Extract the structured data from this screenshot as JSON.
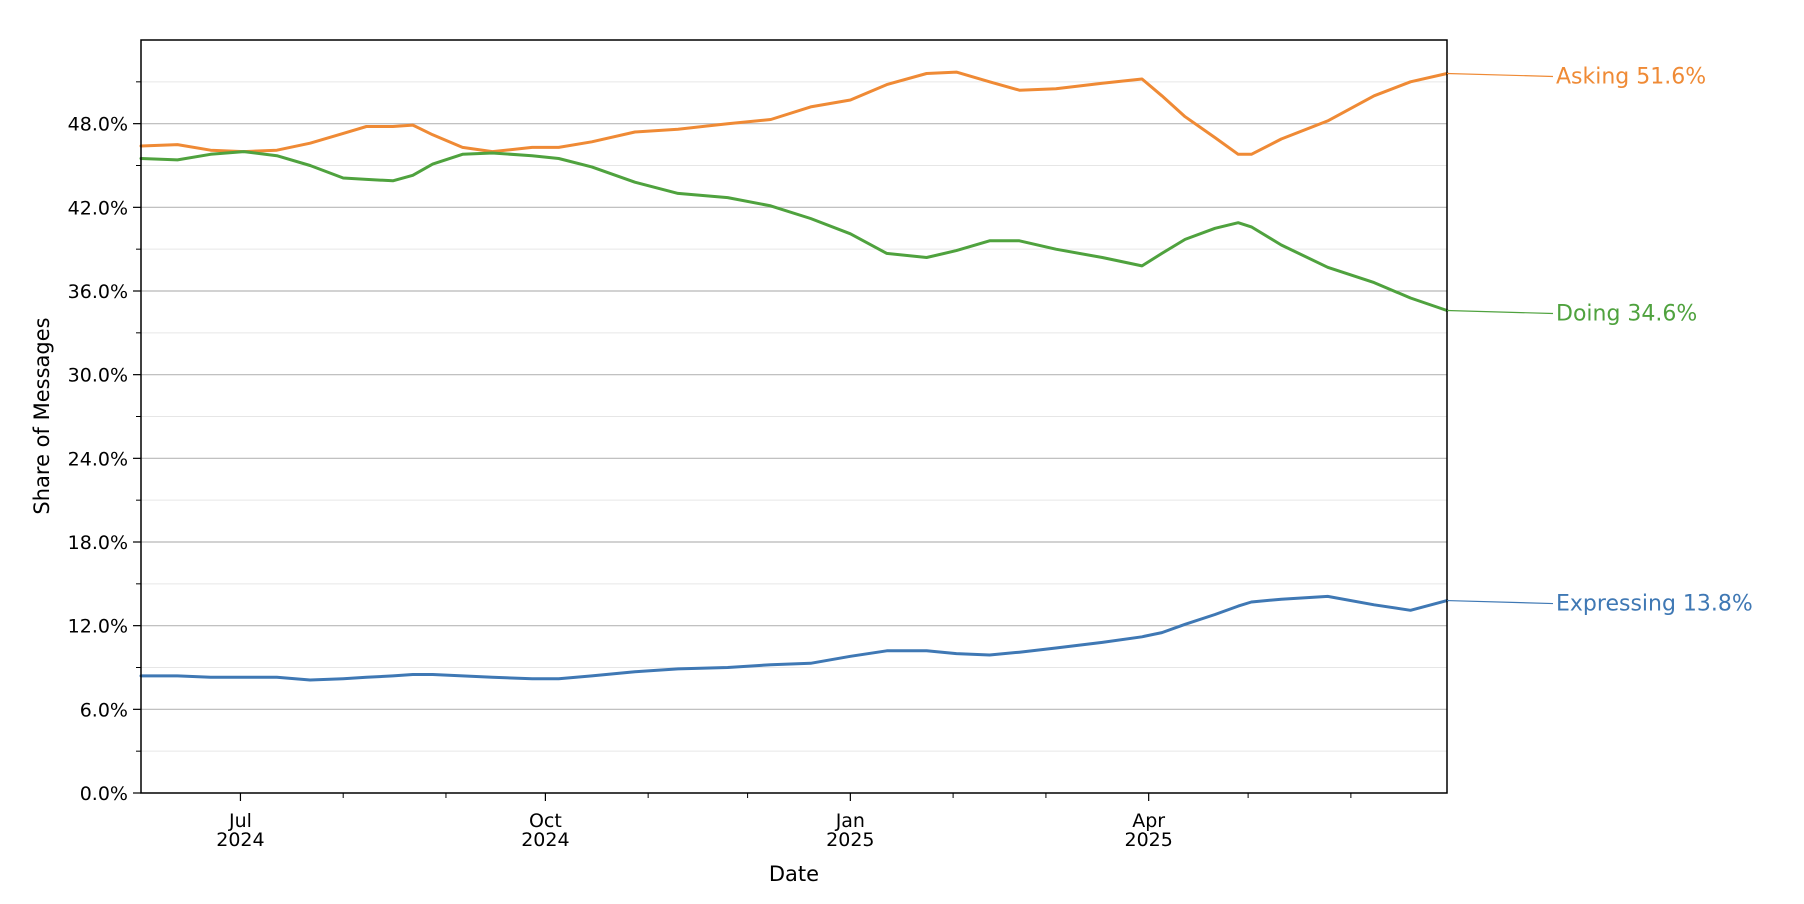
{
  "chart_data": {
    "type": "line",
    "xlabel": "Date",
    "ylabel": "Share of Messages",
    "xlim": [
      "2024-06-01",
      "2025-06-30"
    ],
    "ylim": [
      0,
      0.54
    ],
    "y_tick_values": [
      0,
      0.06,
      0.12,
      0.18,
      0.24,
      0.3,
      0.36,
      0.42,
      0.48
    ],
    "y_tick_labels": [
      "0.0%",
      "6.0%",
      "12.0%",
      "18.0%",
      "24.0%",
      "30.0%",
      "36.0%",
      "42.0%",
      "48.0%"
    ],
    "y_minor_step": 0.03,
    "x_major_ticks": [
      {
        "date": "2024-07-01",
        "month": "Jul",
        "year": "2024"
      },
      {
        "date": "2024-10-01",
        "month": "Oct",
        "year": "2024"
      },
      {
        "date": "2025-01-01",
        "month": "Jan",
        "year": "2025"
      },
      {
        "date": "2025-04-01",
        "month": "Apr",
        "year": "2025"
      }
    ],
    "x_minor_ticks": [
      "2024-08-01",
      "2024-09-01",
      "2024-11-01",
      "2024-12-01",
      "2025-02-01",
      "2025-03-01",
      "2025-05-01",
      "2025-06-01"
    ],
    "grid": "horizontal",
    "legend": "end-of-line labels on the right",
    "series": [
      {
        "name": "Asking",
        "color": "#ef8a35",
        "end_label": "Asking  51.6%",
        "points": [
          [
            "2024-06-01",
            0.464
          ],
          [
            "2024-06-12",
            0.465
          ],
          [
            "2024-06-22",
            0.461
          ],
          [
            "2024-07-02",
            0.46
          ],
          [
            "2024-07-12",
            0.461
          ],
          [
            "2024-07-22",
            0.466
          ],
          [
            "2024-08-01",
            0.473
          ],
          [
            "2024-08-08",
            0.478
          ],
          [
            "2024-08-16",
            0.478
          ],
          [
            "2024-08-22",
            0.479
          ],
          [
            "2024-08-28",
            0.472
          ],
          [
            "2024-09-06",
            0.463
          ],
          [
            "2024-09-15",
            0.46
          ],
          [
            "2024-09-27",
            0.463
          ],
          [
            "2024-10-05",
            0.463
          ],
          [
            "2024-10-15",
            0.467
          ],
          [
            "2024-10-28",
            0.474
          ],
          [
            "2024-11-10",
            0.476
          ],
          [
            "2024-11-25",
            0.48
          ],
          [
            "2024-12-08",
            0.483
          ],
          [
            "2024-12-20",
            0.492
          ],
          [
            "2025-01-01",
            0.497
          ],
          [
            "2025-01-12",
            0.508
          ],
          [
            "2025-01-24",
            0.516
          ],
          [
            "2025-02-02",
            0.517
          ],
          [
            "2025-02-12",
            0.51
          ],
          [
            "2025-02-21",
            0.504
          ],
          [
            "2025-03-04",
            0.505
          ],
          [
            "2025-03-18",
            0.509
          ],
          [
            "2025-03-30",
            0.512
          ],
          [
            "2025-04-05",
            0.5
          ],
          [
            "2025-04-12",
            0.485
          ],
          [
            "2025-04-21",
            0.47
          ],
          [
            "2025-04-28",
            0.458
          ],
          [
            "2025-05-02",
            0.458
          ],
          [
            "2025-05-11",
            0.469
          ],
          [
            "2025-05-25",
            0.482
          ],
          [
            "2025-06-08",
            0.5
          ],
          [
            "2025-06-19",
            0.51
          ],
          [
            "2025-06-30",
            0.516
          ]
        ]
      },
      {
        "name": "Doing",
        "color": "#4fa23e",
        "end_label": "Doing  34.6%",
        "points": [
          [
            "2024-06-01",
            0.455
          ],
          [
            "2024-06-12",
            0.454
          ],
          [
            "2024-06-22",
            0.458
          ],
          [
            "2024-07-02",
            0.46
          ],
          [
            "2024-07-12",
            0.457
          ],
          [
            "2024-07-22",
            0.45
          ],
          [
            "2024-08-01",
            0.441
          ],
          [
            "2024-08-08",
            0.44
          ],
          [
            "2024-08-16",
            0.439
          ],
          [
            "2024-08-22",
            0.443
          ],
          [
            "2024-08-28",
            0.451
          ],
          [
            "2024-09-06",
            0.458
          ],
          [
            "2024-09-15",
            0.459
          ],
          [
            "2024-09-27",
            0.457
          ],
          [
            "2024-10-05",
            0.455
          ],
          [
            "2024-10-15",
            0.449
          ],
          [
            "2024-10-28",
            0.438
          ],
          [
            "2024-11-10",
            0.43
          ],
          [
            "2024-11-25",
            0.427
          ],
          [
            "2024-12-08",
            0.421
          ],
          [
            "2024-12-20",
            0.412
          ],
          [
            "2025-01-01",
            0.401
          ],
          [
            "2025-01-12",
            0.387
          ],
          [
            "2025-01-24",
            0.384
          ],
          [
            "2025-02-02",
            0.389
          ],
          [
            "2025-02-12",
            0.396
          ],
          [
            "2025-02-21",
            0.396
          ],
          [
            "2025-03-04",
            0.39
          ],
          [
            "2025-03-18",
            0.384
          ],
          [
            "2025-03-30",
            0.378
          ],
          [
            "2025-04-05",
            0.387
          ],
          [
            "2025-04-12",
            0.397
          ],
          [
            "2025-04-21",
            0.405
          ],
          [
            "2025-04-28",
            0.409
          ],
          [
            "2025-05-02",
            0.406
          ],
          [
            "2025-05-11",
            0.393
          ],
          [
            "2025-05-25",
            0.377
          ],
          [
            "2025-06-08",
            0.366
          ],
          [
            "2025-06-19",
            0.355
          ],
          [
            "2025-06-30",
            0.346
          ]
        ]
      },
      {
        "name": "Expressing",
        "color": "#3f78b4",
        "end_label": "Expressing  13.8%",
        "points": [
          [
            "2024-06-01",
            0.084
          ],
          [
            "2024-06-12",
            0.084
          ],
          [
            "2024-06-22",
            0.083
          ],
          [
            "2024-07-02",
            0.083
          ],
          [
            "2024-07-12",
            0.083
          ],
          [
            "2024-07-22",
            0.081
          ],
          [
            "2024-08-01",
            0.082
          ],
          [
            "2024-08-08",
            0.083
          ],
          [
            "2024-08-16",
            0.084
          ],
          [
            "2024-08-22",
            0.085
          ],
          [
            "2024-08-28",
            0.085
          ],
          [
            "2024-09-06",
            0.084
          ],
          [
            "2024-09-15",
            0.083
          ],
          [
            "2024-09-27",
            0.082
          ],
          [
            "2024-10-05",
            0.082
          ],
          [
            "2024-10-15",
            0.084
          ],
          [
            "2024-10-28",
            0.087
          ],
          [
            "2024-11-10",
            0.089
          ],
          [
            "2024-11-25",
            0.09
          ],
          [
            "2024-12-08",
            0.092
          ],
          [
            "2024-12-20",
            0.093
          ],
          [
            "2025-01-01",
            0.098
          ],
          [
            "2025-01-12",
            0.102
          ],
          [
            "2025-01-24",
            0.102
          ],
          [
            "2025-02-02",
            0.1
          ],
          [
            "2025-02-12",
            0.099
          ],
          [
            "2025-02-21",
            0.101
          ],
          [
            "2025-03-04",
            0.104
          ],
          [
            "2025-03-18",
            0.108
          ],
          [
            "2025-03-30",
            0.112
          ],
          [
            "2025-04-05",
            0.115
          ],
          [
            "2025-04-12",
            0.121
          ],
          [
            "2025-04-21",
            0.128
          ],
          [
            "2025-04-28",
            0.134
          ],
          [
            "2025-05-02",
            0.137
          ],
          [
            "2025-05-11",
            0.139
          ],
          [
            "2025-05-25",
            0.141
          ],
          [
            "2025-06-08",
            0.135
          ],
          [
            "2025-06-19",
            0.131
          ],
          [
            "2025-06-30",
            0.138
          ]
        ]
      }
    ]
  }
}
